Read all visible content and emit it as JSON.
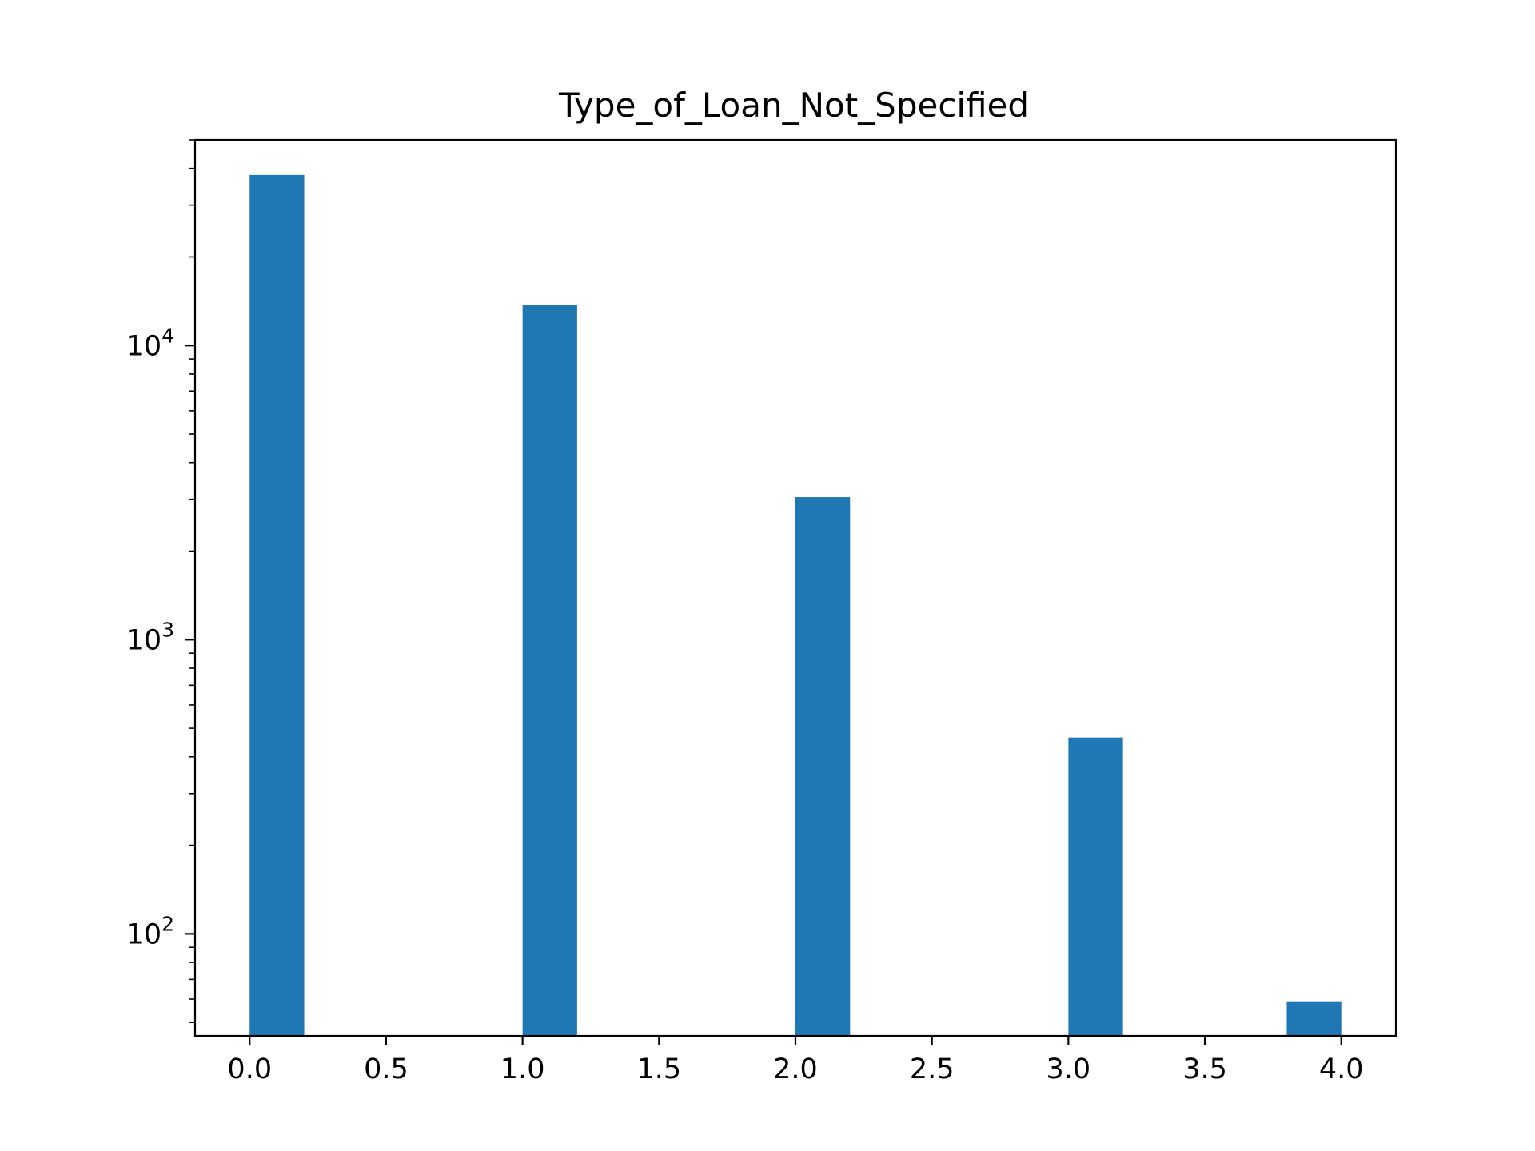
{
  "chart_data": {
    "type": "bar",
    "title": "Type_of_Loan_Not_Specified",
    "xlabel": "",
    "ylabel": "",
    "y_scale": "log",
    "xlim": [
      -0.2,
      4.2
    ],
    "ylim": [
      45,
      50000
    ],
    "bar_width": 0.2,
    "bars": [
      {
        "x_start": 0.0,
        "x_end": 0.2,
        "value": 38000
      },
      {
        "x_start": 1.0,
        "x_end": 1.2,
        "value": 13700
      },
      {
        "x_start": 2.0,
        "x_end": 2.2,
        "value": 3050
      },
      {
        "x_start": 3.0,
        "x_end": 3.2,
        "value": 465
      },
      {
        "x_start": 3.8,
        "x_end": 4.0,
        "value": 59
      }
    ],
    "x_ticks": [
      {
        "value": 0.0,
        "label": "0.0"
      },
      {
        "value": 0.5,
        "label": "0.5"
      },
      {
        "value": 1.0,
        "label": "1.0"
      },
      {
        "value": 1.5,
        "label": "1.5"
      },
      {
        "value": 2.0,
        "label": "2.0"
      },
      {
        "value": 2.5,
        "label": "2.5"
      },
      {
        "value": 3.0,
        "label": "3.0"
      },
      {
        "value": 3.5,
        "label": "3.5"
      },
      {
        "value": 4.0,
        "label": "4.0"
      }
    ],
    "y_ticks": [
      {
        "value": 100,
        "base": "10",
        "exp": "2"
      },
      {
        "value": 1000,
        "base": "10",
        "exp": "3"
      },
      {
        "value": 10000,
        "base": "10",
        "exp": "4"
      }
    ],
    "grid": false,
    "legend": "none",
    "bar_color": "#1f77b4"
  }
}
